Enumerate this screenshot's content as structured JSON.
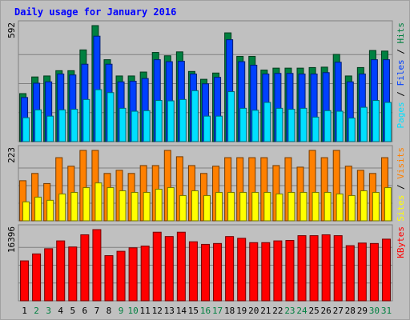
{
  "chart_data": {
    "type": "bar",
    "title": "Daily usage for January 2016",
    "categories": [
      "1",
      "2",
      "3",
      "4",
      "5",
      "6",
      "7",
      "8",
      "9",
      "10",
      "11",
      "12",
      "13",
      "14",
      "15",
      "16",
      "17",
      "18",
      "19",
      "20",
      "21",
      "22",
      "23",
      "24",
      "25",
      "26",
      "27",
      "28",
      "29",
      "30",
      "31"
    ],
    "weekend_days": [
      "2",
      "3",
      "9",
      "10",
      "16",
      "17",
      "23",
      "24",
      "30",
      "31"
    ],
    "panels": [
      {
        "key": "top",
        "ymax_label": "592",
        "ylim": [
          0,
          592
        ],
        "legend": [
          "Pages",
          "Files",
          "Hits"
        ],
        "series": [
          {
            "name": "Hits",
            "color": "#008040",
            "values": [
              245,
              330,
              335,
              362,
              362,
              468,
              592,
              418,
              335,
              335,
              355,
              455,
              438,
              458,
              358,
              318,
              350,
              555,
              435,
              435,
              365,
              375,
              375,
              375,
              378,
              380,
              445,
              335,
              378,
              465,
              462
            ]
          },
          {
            "name": "Files",
            "color": "#0040ff",
            "values": [
              225,
              298,
              305,
              345,
              340,
              395,
              538,
              395,
              305,
              308,
              322,
              418,
              408,
              410,
              345,
              295,
              328,
              520,
              408,
              390,
              345,
              348,
              348,
              345,
              345,
              352,
              405,
              305,
              345,
              418,
              418
            ]
          },
          {
            "name": "Pages",
            "color": "#00e0ff",
            "values": [
              122,
              162,
              130,
              162,
              165,
              215,
              265,
              250,
              170,
              155,
              158,
              210,
              208,
              215,
              260,
              130,
              130,
              255,
              170,
              160,
              200,
              170,
              165,
              170,
              125,
              158,
              155,
              120,
              175,
              210,
              200
            ]
          }
        ]
      },
      {
        "key": "mid",
        "ymax_label": "223",
        "ylim": [
          0,
          223
        ],
        "legend": [
          "Sites",
          "Visits"
        ],
        "series": [
          {
            "name": "Visits",
            "color": "#ff8000",
            "values": [
              127,
              150,
              118,
              200,
              173,
              223,
              223,
              150,
              160,
              150,
              175,
              175,
              223,
              203,
              175,
              150,
              173,
              200,
              200,
              200,
              200,
              175,
              200,
              170,
              223,
              200,
              223,
              173,
              160,
              150,
              200
            ]
          },
          {
            "name": "Sites",
            "color": "#ffff00",
            "values": [
              60,
              75,
              65,
              85,
              90,
              105,
              120,
              105,
              95,
              90,
              90,
              100,
              105,
              80,
              95,
              80,
              90,
              90,
              90,
              90,
              90,
              85,
              90,
              90,
              90,
              90,
              85,
              80,
              95,
              90,
              105
            ]
          }
        ]
      },
      {
        "key": "bot",
        "ymax_label": "16396",
        "ylim": [
          0,
          16396
        ],
        "legend": [
          "KBytes"
        ],
        "series": [
          {
            "name": "KBytes",
            "color": "#ff0000",
            "values": [
              9200,
              10800,
              12000,
              13800,
              12400,
              15200,
              16396,
              10400,
              11400,
              12200,
              12600,
              15800,
              14800,
              15800,
              13600,
              13000,
              13200,
              14800,
              14400,
              13400,
              13400,
              13800,
              13900,
              15000,
              15000,
              15200,
              15000,
              12700,
              13300,
              13200,
              14200
            ]
          }
        ]
      }
    ]
  },
  "colors": {
    "plot_bg": "#c0c0c0",
    "frame": "#808080",
    "title": "#0000ff",
    "weekday_label": "#000000",
    "weekend_label": "#008040",
    "separator": "#000000"
  }
}
